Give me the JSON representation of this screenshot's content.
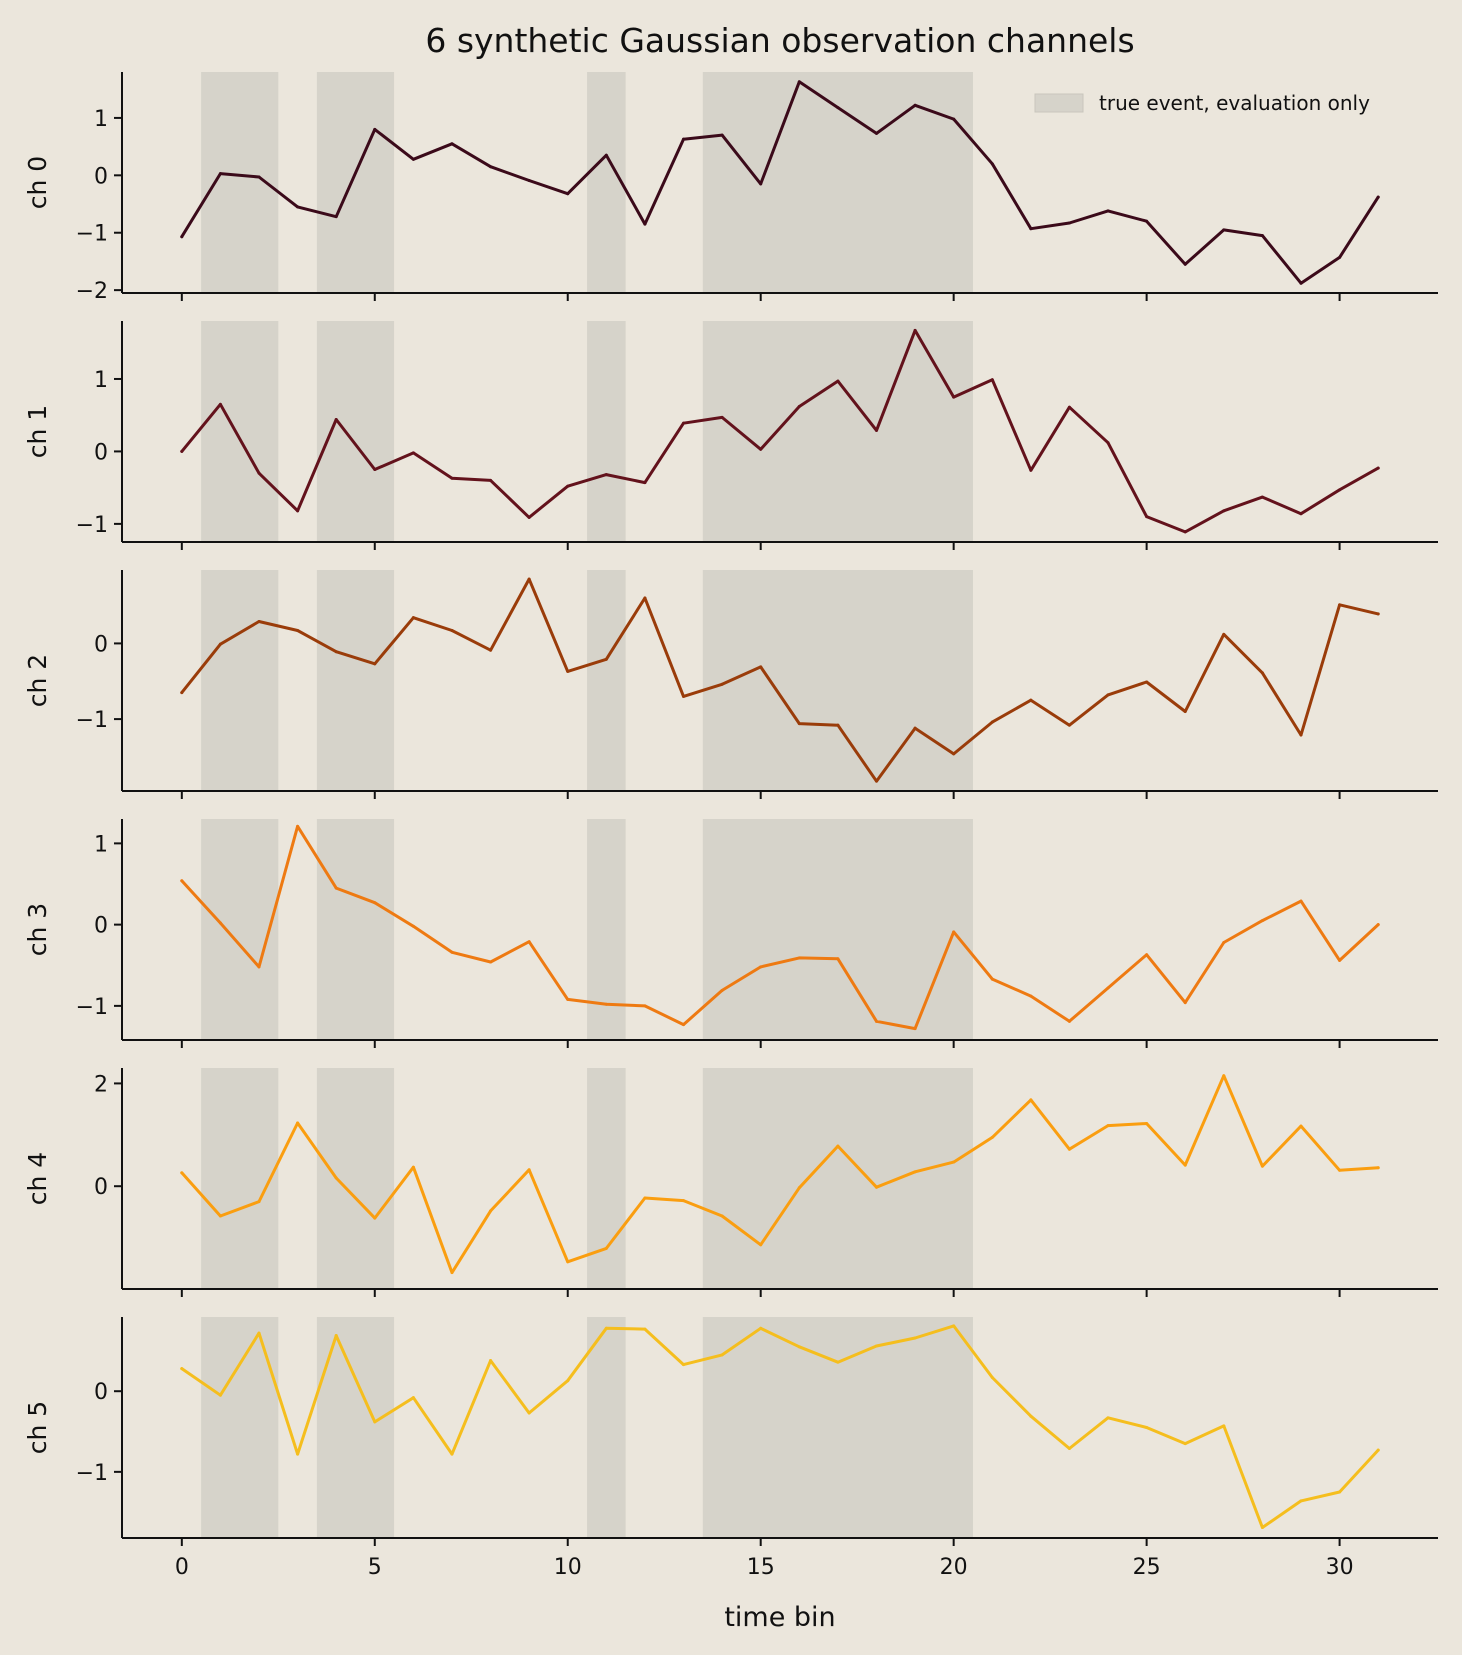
{
  "chart_data": {
    "type": "line",
    "title": "6 synthetic Gaussian observation channels",
    "xlabel": "time bin",
    "xlim": [
      -1.55,
      32.55
    ],
    "xticks": [
      0,
      5,
      10,
      15,
      20,
      25,
      30
    ],
    "grid": false,
    "legend": {
      "position": "top-right",
      "label": "true event, evaluation only",
      "color": "#d6d3ca"
    },
    "event_spans": [
      [
        0.5,
        2.5
      ],
      [
        3.5,
        5.5
      ],
      [
        10.5,
        11.5
      ],
      [
        13.5,
        20.5
      ]
    ],
    "x": [
      0,
      1,
      2,
      3,
      4,
      5,
      6,
      7,
      8,
      9,
      10,
      11,
      12,
      13,
      14,
      15,
      16,
      17,
      18,
      19,
      20,
      21,
      22,
      23,
      24,
      25,
      26,
      27,
      28,
      29,
      30,
      31
    ],
    "panels": [
      {
        "ylabel": "ch 0",
        "color": "#3b0a1a",
        "ylim": [
          -2.05,
          1.8
        ],
        "yticks": [
          -2,
          -1,
          0,
          1
        ],
        "values": [
          -1.07,
          0.03,
          -0.03,
          -0.55,
          -0.72,
          0.8,
          0.28,
          0.55,
          0.15,
          -0.09,
          -0.32,
          0.35,
          -0.85,
          0.63,
          0.7,
          -0.15,
          1.63,
          1.18,
          0.73,
          1.22,
          0.98,
          0.2,
          -0.93,
          -0.83,
          -0.62,
          -0.8,
          -1.55,
          -0.95,
          -1.05,
          -1.88,
          -1.43,
          -0.38
        ]
      },
      {
        "ylabel": "ch 1",
        "color": "#63121c",
        "ylim": [
          -1.25,
          1.8
        ],
        "yticks": [
          -1,
          0,
          1
        ],
        "values": [
          0.0,
          0.65,
          -0.3,
          -0.82,
          0.44,
          -0.25,
          -0.02,
          -0.37,
          -0.4,
          -0.91,
          -0.48,
          -0.32,
          -0.43,
          0.39,
          0.47,
          0.03,
          0.62,
          0.97,
          0.29,
          1.67,
          0.75,
          0.99,
          -0.26,
          0.61,
          0.12,
          -0.9,
          -1.11,
          -0.82,
          -0.63,
          -0.86,
          -0.53,
          -0.23
        ]
      },
      {
        "ylabel": "ch 2",
        "color": "#9a3c0a",
        "ylim": [
          -1.95,
          0.97
        ],
        "yticks": [
          -1,
          0
        ],
        "values": [
          -0.65,
          -0.01,
          0.29,
          0.17,
          -0.11,
          -0.27,
          0.34,
          0.17,
          -0.09,
          0.85,
          -0.37,
          -0.21,
          0.6,
          -0.7,
          -0.54,
          -0.31,
          -1.06,
          -1.08,
          -1.82,
          -1.12,
          -1.46,
          -1.04,
          -0.75,
          -1.08,
          -0.68,
          -0.51,
          -0.9,
          0.12,
          -0.39,
          -1.21,
          0.51,
          0.39
        ]
      },
      {
        "ylabel": "ch 3",
        "color": "#ee7a12",
        "ylim": [
          -1.42,
          1.3
        ],
        "yticks": [
          -1,
          0,
          1
        ],
        "values": [
          0.54,
          0.02,
          -0.52,
          1.21,
          0.45,
          0.27,
          -0.02,
          -0.34,
          -0.46,
          -0.21,
          -0.92,
          -0.98,
          -1.0,
          -1.23,
          -0.81,
          -0.52,
          -0.41,
          -0.42,
          -1.19,
          -1.28,
          -0.09,
          -0.67,
          -0.88,
          -1.19,
          -0.78,
          -0.37,
          -0.96,
          -0.22,
          0.05,
          0.29,
          -0.44,
          0.0
        ]
      },
      {
        "ylabel": "ch 4",
        "color": "#fa9e10",
        "ylim": [
          -2.0,
          2.3
        ],
        "yticks": [
          0,
          2
        ],
        "values": [
          0.26,
          -0.58,
          -0.3,
          1.23,
          0.16,
          -0.62,
          0.37,
          -1.68,
          -0.48,
          0.32,
          -1.47,
          -1.21,
          -0.23,
          -0.28,
          -0.58,
          -1.14,
          -0.03,
          0.78,
          -0.02,
          0.28,
          0.47,
          0.95,
          1.68,
          0.72,
          1.18,
          1.22,
          0.41,
          2.15,
          0.39,
          1.17,
          0.31,
          0.36
        ]
      },
      {
        "ylabel": "ch 5",
        "color": "#f5be1e",
        "ylim": [
          -1.82,
          0.92
        ],
        "yticks": [
          -1,
          0
        ],
        "values": [
          0.28,
          -0.05,
          0.72,
          -0.78,
          0.69,
          -0.38,
          -0.08,
          -0.78,
          0.38,
          -0.27,
          0.13,
          0.78,
          0.77,
          0.33,
          0.45,
          0.78,
          0.55,
          0.36,
          0.56,
          0.66,
          0.81,
          0.17,
          -0.31,
          -0.71,
          -0.33,
          -0.45,
          -0.65,
          -0.43,
          -1.69,
          -1.36,
          -1.25,
          -0.73
        ]
      }
    ]
  }
}
